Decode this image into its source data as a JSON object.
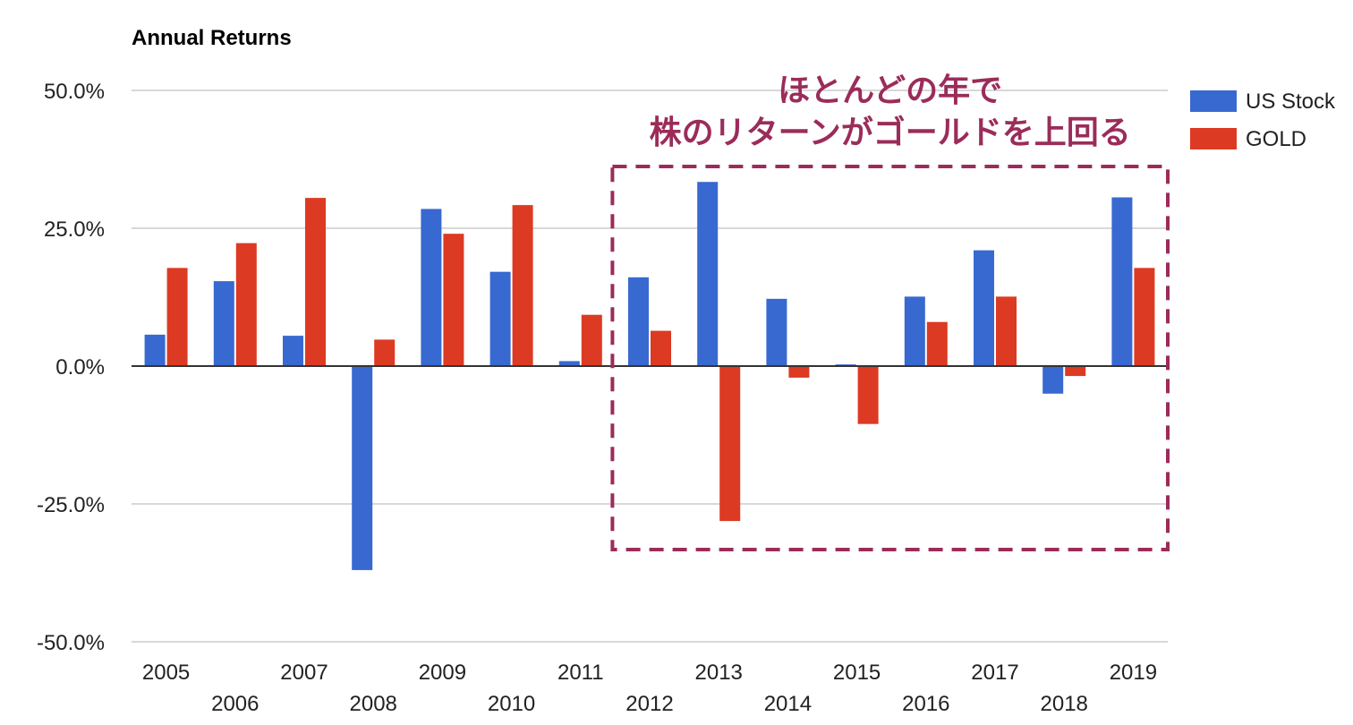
{
  "colors": {
    "us_stock": "#3869d0",
    "gold": "#dc3a22",
    "annotation": "#9b2c5a",
    "gridline": "#cccccc",
    "baseline": "#333333"
  },
  "chart_data": {
    "type": "bar",
    "title": "Annual Returns",
    "xlabel": "",
    "ylabel": "",
    "categories": [
      "2005",
      "2006",
      "2007",
      "2008",
      "2009",
      "2010",
      "2011",
      "2012",
      "2013",
      "2014",
      "2015",
      "2016",
      "2017",
      "2018",
      "2019"
    ],
    "series": [
      {
        "name": "US Stock",
        "color": "#3869d0",
        "values": [
          5.7,
          15.4,
          5.5,
          -37.0,
          28.5,
          17.1,
          0.9,
          16.1,
          33.4,
          12.2,
          0.3,
          12.6,
          21.0,
          -5.0,
          30.6
        ]
      },
      {
        "name": "GOLD",
        "color": "#dc3a22",
        "values": [
          17.8,
          22.3,
          30.5,
          4.8,
          24.0,
          29.2,
          9.3,
          6.4,
          -28.1,
          -2.1,
          -10.5,
          8.0,
          12.6,
          -1.8,
          17.8
        ]
      }
    ],
    "ylim": [
      -50,
      50
    ],
    "yticks": [
      50,
      25,
      0,
      -25,
      -50
    ],
    "ytick_labels": [
      "50.0%",
      "25.0%",
      "0.0%",
      "-25.0%",
      "-50.0%"
    ],
    "grid": true,
    "legend_position": "right",
    "annotation": {
      "lines": [
        "ほとんどの年で",
        "株のリターンがゴールドを上回る"
      ],
      "box_from": "2012",
      "box_to": "2019",
      "box_style": "dashed"
    }
  }
}
